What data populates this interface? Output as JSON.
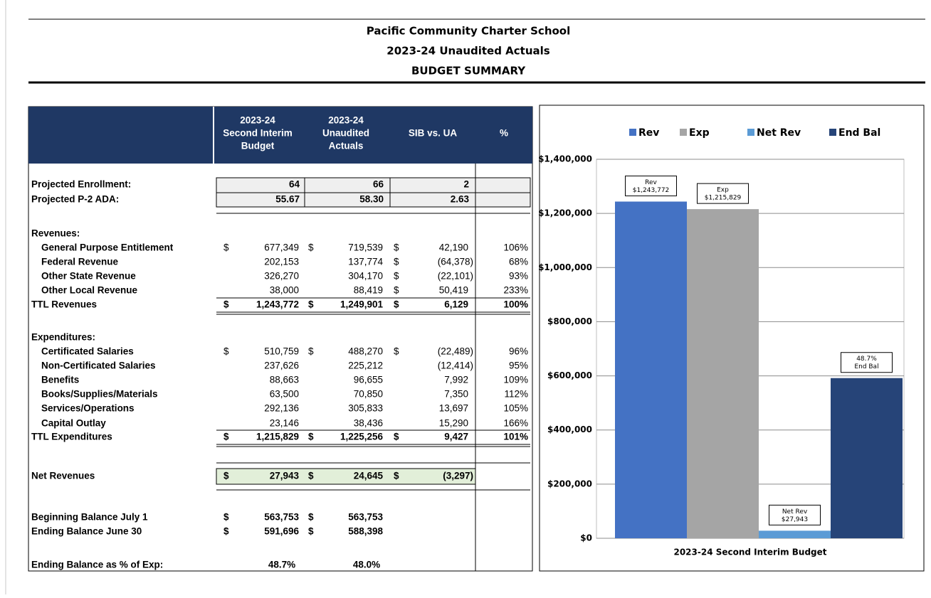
{
  "header": {
    "lines": [
      "Pacific Community Charter School",
      "2023-24 Unaudited Actuals",
      "BUDGET SUMMARY"
    ]
  },
  "table": {
    "columns": [
      [
        "2023-24",
        "Second Interim",
        "Budget"
      ],
      [
        "2023-24",
        "Unaudited",
        "Actuals"
      ],
      [
        "SIB vs. UA"
      ],
      [
        "%"
      ]
    ],
    "rows": [
      [
        "Projected Enrollment:",
        null,
        "64",
        null,
        "66",
        null,
        "2",
        null
      ],
      [
        "Projected P-2 ADA:",
        null,
        "55.67",
        null,
        "58.30",
        null,
        "2.63",
        null
      ],
      [
        "Revenues:"
      ],
      [
        "General Purpose Entitlement",
        "$",
        "677,349",
        "$",
        "719,539",
        "$",
        "42,190",
        "106%"
      ],
      [
        "Federal Revenue",
        null,
        "202,153",
        null,
        "137,774",
        "$",
        "(64,378)",
        "68%"
      ],
      [
        "Other State Revenue",
        null,
        "326,270",
        null,
        "304,170",
        "$",
        "(22,101)",
        "93%"
      ],
      [
        "Other Local Revenue",
        null,
        "38,000",
        null,
        "88,419",
        "$",
        "50,419",
        "233%"
      ],
      [
        "TTL Revenues",
        "$",
        "1,243,772",
        "$",
        "1,249,901",
        "$",
        "6,129",
        "100%"
      ],
      [
        "Expenditures:"
      ],
      [
        "Certificated Salaries",
        "$",
        "510,759",
        "$",
        "488,270",
        "$",
        "(22,489)",
        "96%"
      ],
      [
        "Non-Certificated Salaries",
        null,
        "237,626",
        null,
        "225,212",
        null,
        "(12,414)",
        "95%"
      ],
      [
        "Benefits",
        null,
        "88,663",
        null,
        "96,655",
        null,
        "7,992",
        "109%"
      ],
      [
        "Books/Supplies/Materials",
        null,
        "63,500",
        null,
        "70,850",
        null,
        "7,350",
        "112%"
      ],
      [
        "Services/Operations",
        null,
        "292,136",
        null,
        "305,833",
        null,
        "13,697",
        "105%"
      ],
      [
        "Capital Outlay",
        null,
        "23,146",
        null,
        "38,436",
        null,
        "15,290",
        "166%"
      ],
      [
        "TTL Expenditures",
        "$",
        "1,215,829",
        "$",
        "1,225,256",
        "$",
        "9,427",
        "101%"
      ],
      [
        "Net Revenues",
        "$",
        "27,943",
        "$",
        "24,645",
        "$",
        "(3,297)",
        null
      ],
      [
        "Beginning Balance July 1",
        "$",
        "563,753",
        "$",
        "563,753",
        null,
        null,
        null
      ],
      [
        "Ending Balance June 30",
        "$",
        "591,696",
        "$",
        "588,398",
        null,
        null,
        null
      ],
      [
        "Ending Balance as % of Exp:",
        null,
        "48.7%",
        null,
        "48.0%",
        null,
        null,
        null
      ]
    ]
  },
  "chart_data": {
    "type": "bar",
    "categories": [
      "2023-24 Second Interim Budget"
    ],
    "series": [
      {
        "name": "Rev",
        "color": "#4472c4",
        "values": [
          1243772
        ],
        "value_labels": [
          "$1,243,772"
        ]
      },
      {
        "name": "Exp",
        "color": "#a5a5a5",
        "values": [
          1215829
        ],
        "value_labels": [
          "$1,215,829"
        ]
      },
      {
        "name": "Net Rev",
        "color": "#5b9bd5",
        "values": [
          27943
        ],
        "value_labels": [
          "$27,943"
        ]
      },
      {
        "name": "End Bal",
        "color": "#264478",
        "values": [
          591696
        ],
        "annotation": "48.7%"
      }
    ],
    "ylim": [
      0,
      1400000
    ],
    "yticks": [
      {
        "value": 0,
        "label": "$0"
      },
      {
        "value": 200000,
        "label": "$200,000"
      },
      {
        "value": 400000,
        "label": "$400,000"
      },
      {
        "value": 600000,
        "label": "$600,000"
      },
      {
        "value": 800000,
        "label": "$800,000"
      },
      {
        "value": 1000000,
        "label": "$1,000,000"
      },
      {
        "value": 1200000,
        "label": "$1,200,000"
      },
      {
        "value": 1400000,
        "label": "$1,400,000"
      }
    ],
    "grid": true,
    "legend": "top"
  }
}
